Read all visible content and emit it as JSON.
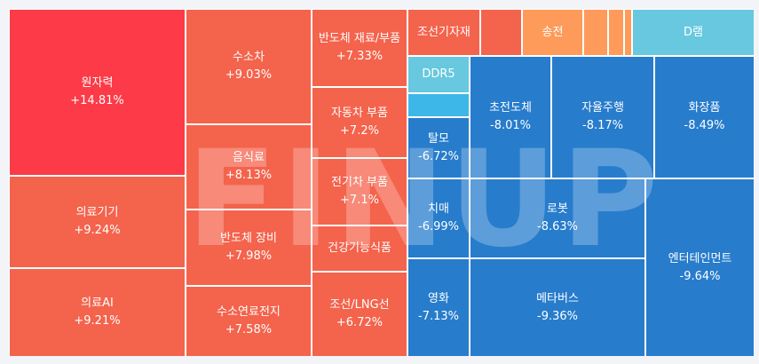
{
  "watermark": "FINUP",
  "colors": {
    "strong_up": "#fd3a47",
    "up": "#f4634c",
    "mild_up": "#fe9b5b",
    "down": "#277ccc",
    "mild_down": "#67c8df",
    "light_down": "#3db7e8"
  },
  "cells": [
    {
      "name": "원자력",
      "change": "+14.81%"
    },
    {
      "name": "의료기기",
      "change": "+9.24%"
    },
    {
      "name": "의료AI",
      "change": "+9.21%"
    },
    {
      "name": "수소차",
      "change": "+9.03%"
    },
    {
      "name": "음식료",
      "change": "+8.13%"
    },
    {
      "name": "반도체 장비",
      "change": "+7.98%"
    },
    {
      "name": "수소연료전지",
      "change": "+7.58%"
    },
    {
      "name": "반도체 재료/부품",
      "change": "+7.33%"
    },
    {
      "name": "자동차 부품",
      "change": "+7.2%"
    },
    {
      "name": "전기차 부품",
      "change": "+7.1%"
    },
    {
      "name": "건강기능식품",
      "change": ""
    },
    {
      "name": "조선/LNG선",
      "change": "+6.72%"
    },
    {
      "name": "조선기자재",
      "change": ""
    },
    {
      "name": "송전",
      "change": ""
    },
    {
      "name": "D램",
      "change": ""
    },
    {
      "name": "DDR5",
      "change": ""
    },
    {
      "name": "탈모",
      "change": "-6.72%"
    },
    {
      "name": "초전도체",
      "change": "-8.01%"
    },
    {
      "name": "자율주행",
      "change": "-8.17%"
    },
    {
      "name": "화장품",
      "change": "-8.49%"
    },
    {
      "name": "치매",
      "change": "-6.99%"
    },
    {
      "name": "로봇",
      "change": "-8.63%"
    },
    {
      "name": "영화",
      "change": "-7.13%"
    },
    {
      "name": "메타버스",
      "change": "-9.36%"
    },
    {
      "name": "엔터테인먼트",
      "change": "-9.64%"
    }
  ]
}
